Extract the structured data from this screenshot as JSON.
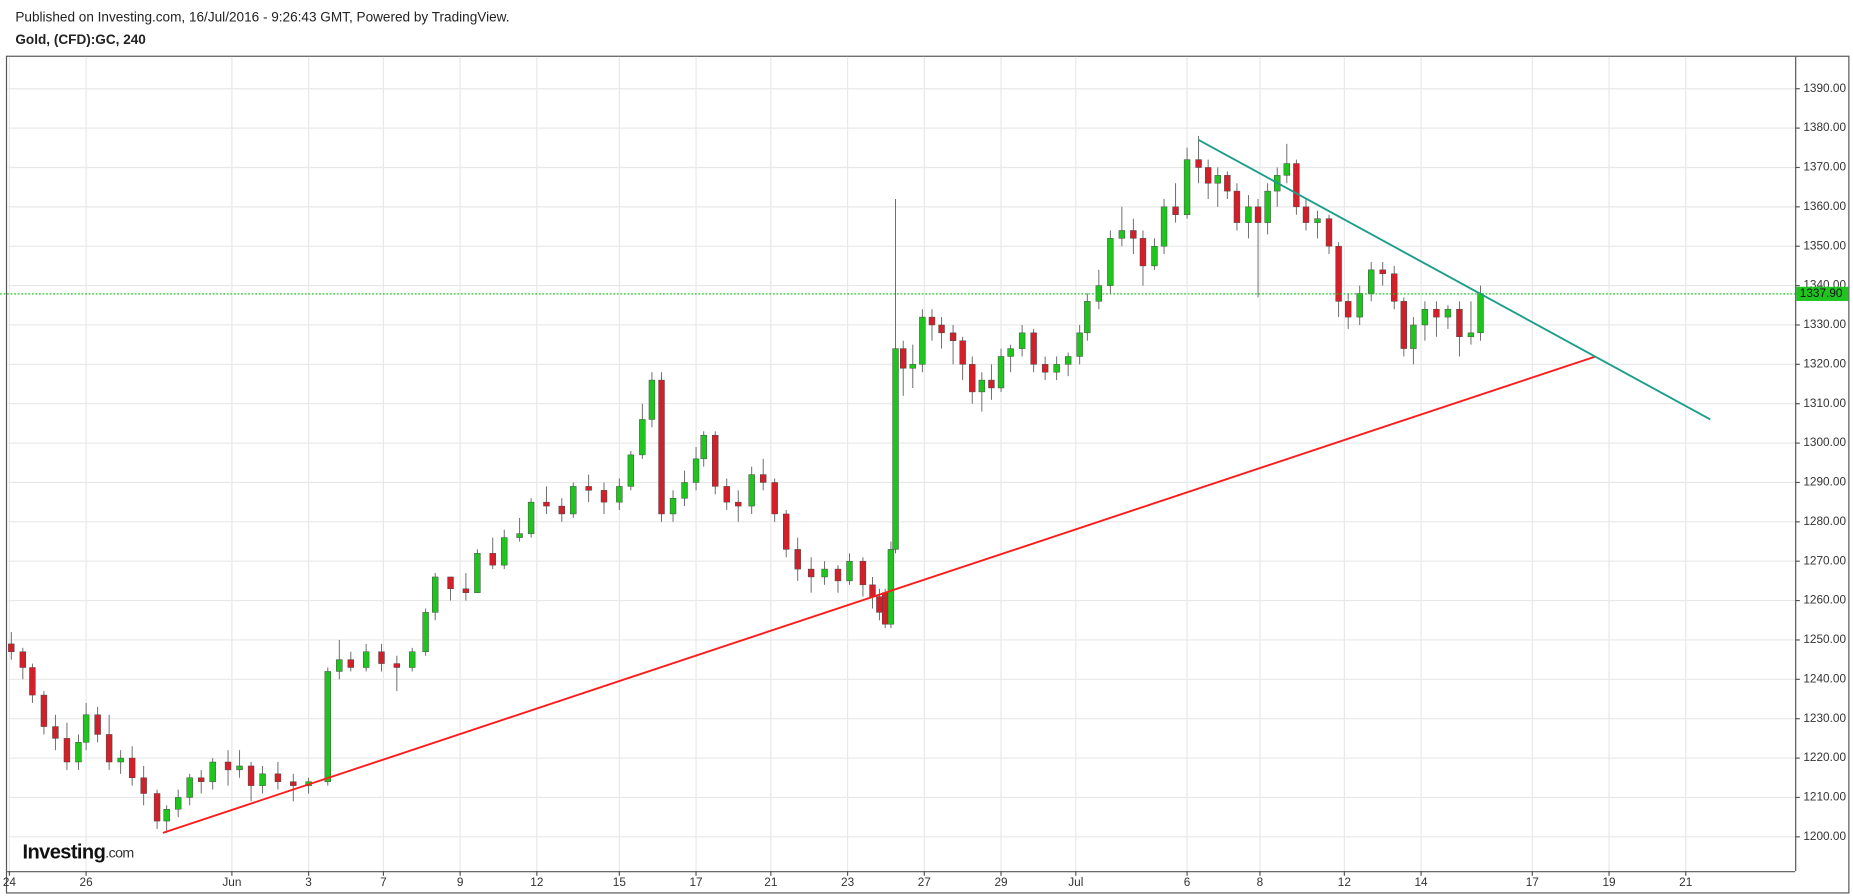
{
  "header": {
    "published": "Published on Investing.com, 16/Jul/2016 - 9:26:43 GMT, Powered by TradingView.",
    "symbol": "Gold, (CFD):GC, 240"
  },
  "logo": {
    "name": "Investing",
    "suffix": ".com"
  },
  "chart_data": {
    "type": "candlestick",
    "up_color": "#1fc41f",
    "down_color": "#d2202a",
    "grid": true,
    "xlim": [
      -0.06,
      46.55
    ],
    "ylim": [
      1191.3,
      1398.1
    ],
    "xticks": [
      {
        "value": 0,
        "label": "24"
      },
      {
        "value": 2,
        "label": "26"
      },
      {
        "value": 5.8,
        "label": "Jun"
      },
      {
        "value": 7.8,
        "label": "3"
      },
      {
        "value": 9.75,
        "label": "7"
      },
      {
        "value": 11.75,
        "label": "9"
      },
      {
        "value": 13.75,
        "label": "12"
      },
      {
        "value": 15.9,
        "label": "15"
      },
      {
        "value": 17.9,
        "label": "17"
      },
      {
        "value": 19.85,
        "label": "21"
      },
      {
        "value": 21.85,
        "label": "23"
      },
      {
        "value": 23.85,
        "label": "27"
      },
      {
        "value": 25.85,
        "label": "29"
      },
      {
        "value": 27.8,
        "label": "Jul"
      },
      {
        "value": 30.7,
        "label": "6"
      },
      {
        "value": 32.6,
        "label": "8"
      },
      {
        "value": 34.8,
        "label": "12"
      },
      {
        "value": 36.8,
        "label": "14"
      },
      {
        "value": 39.7,
        "label": "17"
      },
      {
        "value": 41.7,
        "label": "19"
      },
      {
        "value": 43.7,
        "label": "21"
      }
    ],
    "yticks": [
      {
        "value": 1200,
        "label": "1200.00"
      },
      {
        "value": 1210,
        "label": "1210.00"
      },
      {
        "value": 1220,
        "label": "1220.00"
      },
      {
        "value": 1230,
        "label": "1230.00"
      },
      {
        "value": 1240,
        "label": "1240.00"
      },
      {
        "value": 1250,
        "label": "1250.00"
      },
      {
        "value": 1260,
        "label": "1260.00"
      },
      {
        "value": 1270,
        "label": "1270.00"
      },
      {
        "value": 1280,
        "label": "1280.00"
      },
      {
        "value": 1290,
        "label": "1290.00"
      },
      {
        "value": 1300,
        "label": "1300.00"
      },
      {
        "value": 1310,
        "label": "1310.00"
      },
      {
        "value": 1320,
        "label": "1320.00"
      },
      {
        "value": 1330,
        "label": "1330.00"
      },
      {
        "value": 1340,
        "label": "1340.00"
      },
      {
        "value": 1350,
        "label": "1350.00"
      },
      {
        "value": 1360,
        "label": "1360.00"
      },
      {
        "value": 1370,
        "label": "1370.00"
      },
      {
        "value": 1380,
        "label": "1380.00"
      },
      {
        "value": 1390,
        "label": "1390.00"
      }
    ],
    "last_price": {
      "value": 1337.9,
      "label": "1337.90",
      "color": "#1fc41f"
    },
    "trendlines": [
      {
        "color": "#ff1a1a",
        "x": [
          4.0,
          41.35
        ],
        "y": [
          1201,
          1322
        ]
      },
      {
        "color": "#1a9e8a",
        "x": [
          31.0,
          44.34
        ],
        "y": [
          1377,
          1306
        ]
      }
    ],
    "x": [
      0.05,
      0.35,
      0.6,
      0.9,
      1.2,
      1.5,
      1.8,
      2.0,
      2.3,
      2.6,
      2.9,
      3.2,
      3.5,
      3.85,
      4.1,
      4.4,
      4.7,
      5.0,
      5.3,
      5.7,
      6.0,
      6.3,
      6.6,
      7.0,
      7.4,
      7.8,
      8.3,
      8.6,
      8.9,
      9.3,
      9.7,
      10.1,
      10.5,
      10.85,
      11.1,
      11.5,
      11.9,
      12.2,
      12.6,
      12.9,
      13.3,
      13.6,
      14.0,
      14.4,
      14.7,
      15.1,
      15.5,
      15.9,
      16.2,
      16.5,
      16.75,
      17.0,
      17.3,
      17.6,
      17.9,
      18.1,
      18.4,
      18.7,
      19.0,
      19.35,
      19.65,
      19.95,
      20.25,
      20.55,
      20.9,
      21.25,
      21.6,
      21.9,
      22.25,
      22.5,
      22.68,
      22.83,
      22.98,
      23.1,
      23.3,
      23.55,
      23.8,
      24.05,
      24.3,
      24.6,
      24.85,
      25.1,
      25.35,
      25.6,
      25.85,
      26.1,
      26.4,
      26.7,
      27.0,
      27.3,
      27.6,
      27.9,
      28.1,
      28.4,
      28.7,
      29.0,
      29.3,
      29.55,
      29.85,
      30.1,
      30.4,
      30.7,
      31.0,
      31.25,
      31.5,
      31.75,
      32.0,
      32.3,
      32.55,
      32.8,
      33.05,
      33.3,
      33.55,
      33.8,
      34.1,
      34.4,
      34.65,
      34.9,
      35.2,
      35.5,
      35.8,
      36.1,
      36.35,
      36.6,
      36.9,
      37.2,
      37.5,
      37.8,
      38.1,
      38.35
    ],
    "open": [
      1249,
      1247,
      1243,
      1236,
      1228,
      1225,
      1219,
      1224,
      1231,
      1226,
      1219,
      1220,
      1215,
      1211,
      1204,
      1207,
      1210,
      1215,
      1214,
      1219,
      1217,
      1218,
      1213,
      1216,
      1214,
      1213,
      1214,
      1242,
      1245,
      1243,
      1247,
      1244,
      1243,
      1247,
      1257,
      1266,
      1263,
      1262,
      1272,
      1269,
      1276,
      1277,
      1285,
      1284,
      1282,
      1289,
      1288,
      1285,
      1289,
      1297,
      1306,
      1316,
      1282,
      1286,
      1290,
      1296,
      1302,
      1289,
      1285,
      1284,
      1292,
      1290,
      1282,
      1273,
      1268,
      1266,
      1268,
      1265,
      1270,
      1264,
      1261,
      1262,
      1254,
      1273,
      1324,
      1319,
      1320,
      1332,
      1330,
      1328,
      1326,
      1320,
      1313,
      1316,
      1314,
      1322,
      1324,
      1328,
      1320,
      1318,
      1320,
      1322,
      1328,
      1336,
      1340,
      1352,
      1354,
      1352,
      1345,
      1350,
      1360,
      1358,
      1372,
      1370,
      1366,
      1368,
      1364,
      1356,
      1360,
      1356,
      1364,
      1368,
      1371,
      1360,
      1356,
      1357,
      1350,
      1336,
      1332,
      1338,
      1344,
      1343,
      1336,
      1324,
      1330,
      1334,
      1332,
      1334,
      1327,
      1328
    ],
    "high": [
      1252,
      1248,
      1244,
      1237,
      1231,
      1229,
      1226,
      1234,
      1233,
      1231,
      1222,
      1223,
      1218,
      1212,
      1208,
      1212,
      1216,
      1217,
      1220,
      1222,
      1222,
      1219,
      1218,
      1219,
      1216,
      1215,
      1243,
      1250,
      1247,
      1249,
      1249,
      1246,
      1248,
      1258,
      1267,
      1266,
      1267,
      1273,
      1276,
      1278,
      1281,
      1286,
      1289,
      1286,
      1290,
      1292,
      1290,
      1291,
      1298,
      1310,
      1318,
      1318,
      1288,
      1293,
      1299,
      1303,
      1303,
      1291,
      1288,
      1294,
      1296,
      1291,
      1283,
      1276,
      1271,
      1270,
      1269,
      1272,
      1271,
      1266,
      1263,
      1263,
      1275,
      1362,
      1326,
      1325,
      1334,
      1334,
      1332,
      1330,
      1327,
      1322,
      1318,
      1320,
      1324,
      1325,
      1330,
      1329,
      1322,
      1322,
      1323,
      1330,
      1338,
      1344,
      1354,
      1360,
      1357,
      1354,
      1352,
      1362,
      1366,
      1375,
      1378,
      1372,
      1370,
      1369,
      1366,
      1363,
      1362,
      1366,
      1370,
      1376,
      1372,
      1362,
      1359,
      1358,
      1351,
      1338,
      1340,
      1346,
      1346,
      1345,
      1337,
      1332,
      1336,
      1336,
      1335,
      1336,
      1336,
      1340
    ],
    "low": [
      1245,
      1240,
      1234,
      1226,
      1222,
      1217,
      1217,
      1222,
      1224,
      1217,
      1216,
      1213,
      1208,
      1202,
      1201,
      1205,
      1208,
      1211,
      1212,
      1213,
      1215,
      1209,
      1211,
      1212,
      1209,
      1211,
      1213,
      1240,
      1242,
      1242,
      1242,
      1237,
      1242,
      1246,
      1255,
      1260,
      1260,
      1262,
      1268,
      1268,
      1275,
      1276,
      1282,
      1280,
      1281,
      1285,
      1282,
      1283,
      1288,
      1296,
      1304,
      1280,
      1280,
      1284,
      1288,
      1294,
      1287,
      1283,
      1280,
      1282,
      1288,
      1280,
      1271,
      1265,
      1262,
      1264,
      1262,
      1264,
      1261,
      1258,
      1255,
      1253,
      1253,
      1272,
      1312,
      1314,
      1318,
      1326,
      1324,
      1320,
      1316,
      1310,
      1308,
      1311,
      1313,
      1318,
      1322,
      1318,
      1316,
      1316,
      1317,
      1320,
      1326,
      1334,
      1338,
      1350,
      1348,
      1340,
      1344,
      1348,
      1356,
      1357,
      1366,
      1362,
      1360,
      1362,
      1354,
      1352,
      1337,
      1353,
      1360,
      1366,
      1358,
      1354,
      1352,
      1348,
      1332,
      1329,
      1330,
      1336,
      1340,
      1334,
      1322,
      1320,
      1326,
      1327,
      1329,
      1322,
      1325,
      1326
    ],
    "close": [
      1247,
      1243,
      1236,
      1228,
      1225,
      1219,
      1224,
      1231,
      1226,
      1219,
      1220,
      1215,
      1211,
      1204,
      1207,
      1210,
      1215,
      1214,
      1219,
      1217,
      1218,
      1213,
      1216,
      1214,
      1213,
      1214,
      1242,
      1245,
      1243,
      1247,
      1244,
      1243,
      1247,
      1257,
      1266,
      1263,
      1262,
      1272,
      1269,
      1276,
      1277,
      1285,
      1284,
      1282,
      1289,
      1288,
      1285,
      1289,
      1297,
      1306,
      1316,
      1282,
      1286,
      1290,
      1296,
      1302,
      1289,
      1285,
      1284,
      1292,
      1290,
      1282,
      1273,
      1268,
      1266,
      1268,
      1265,
      1270,
      1264,
      1261,
      1257,
      1254,
      1273,
      1324,
      1319,
      1320,
      1332,
      1330,
      1328,
      1326,
      1320,
      1313,
      1316,
      1314,
      1322,
      1324,
      1328,
      1320,
      1318,
      1320,
      1322,
      1328,
      1336,
      1340,
      1352,
      1354,
      1352,
      1345,
      1350,
      1360,
      1358,
      1372,
      1370,
      1366,
      1368,
      1364,
      1356,
      1360,
      1356,
      1364,
      1368,
      1371,
      1360,
      1356,
      1357,
      1350,
      1336,
      1332,
      1338,
      1344,
      1343,
      1336,
      1324,
      1330,
      1334,
      1332,
      1334,
      1327,
      1328,
      1338
    ]
  }
}
